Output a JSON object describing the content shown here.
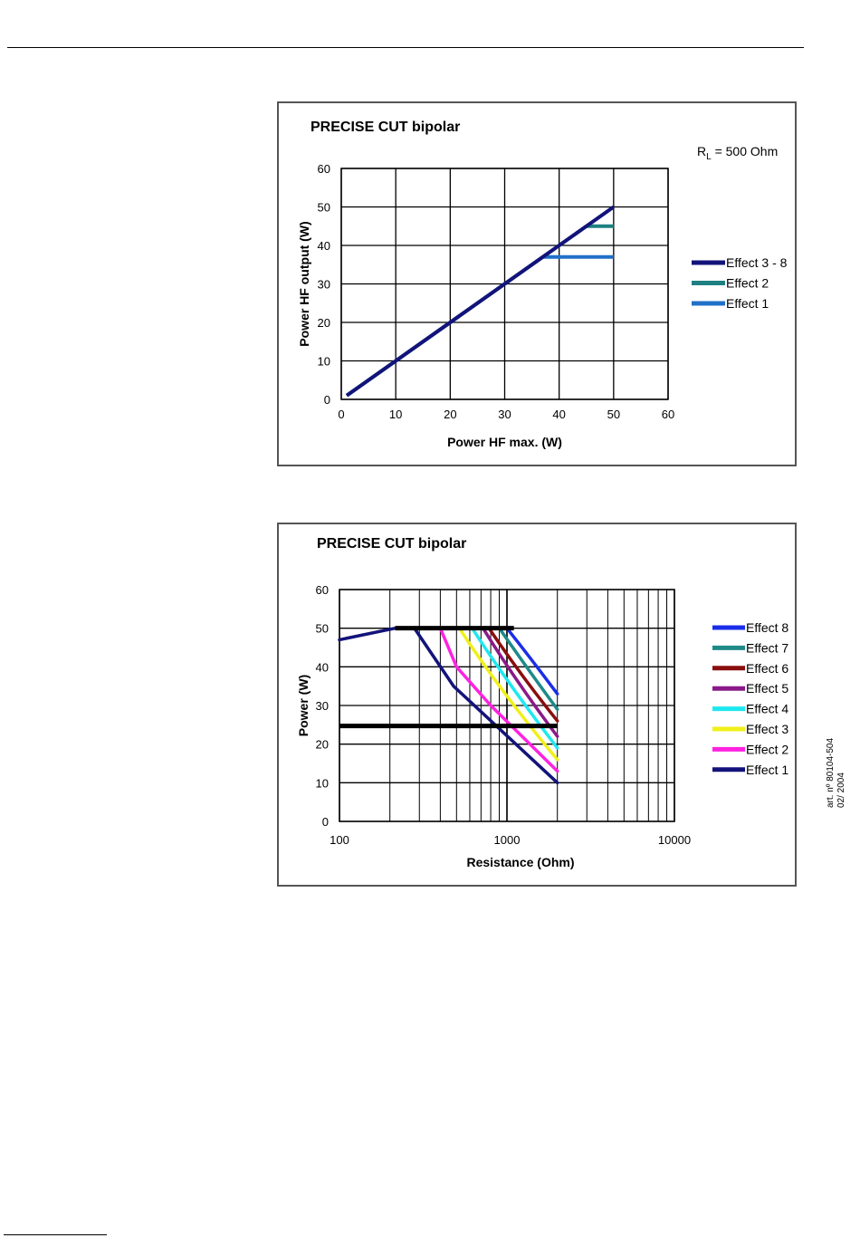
{
  "side_note": {
    "line1": "art. nº 80104-504",
    "line2": "02/ 2004"
  },
  "chart_data": [
    {
      "type": "line",
      "title": "PRECISE CUT bipolar",
      "annotation": {
        "main": "R",
        "sub": "L",
        "rest": " = 500 Ohm"
      },
      "xlabel": "Power HF max. (W)",
      "ylabel": "Power HF output (W)",
      "xlim": [
        0,
        60
      ],
      "ylim": [
        0,
        60
      ],
      "xticks": [
        "0",
        "10",
        "20",
        "30",
        "40",
        "50",
        "60"
      ],
      "yticks": [
        "0",
        "10",
        "20",
        "30",
        "40",
        "50",
        "60"
      ],
      "grid": true,
      "legend_position": "right",
      "series": [
        {
          "name": "Effect 3 - 8",
          "color": "#13137a",
          "x": [
            1,
            50
          ],
          "y": [
            1,
            50
          ]
        },
        {
          "name": "Effect 2",
          "color": "#1e8080",
          "x": [
            1,
            45,
            50
          ],
          "y": [
            1,
            45,
            45
          ]
        },
        {
          "name": "Effect 1",
          "color": "#2070c8",
          "x": [
            1,
            37,
            50
          ],
          "y": [
            1,
            37,
            37
          ]
        }
      ]
    },
    {
      "type": "line",
      "title": "PRECISE CUT bipolar",
      "xlabel": "Resistance (Ohm)",
      "ylabel": "Power (W)",
      "xscale": "log",
      "xlim": [
        100,
        10000
      ],
      "ylim": [
        0,
        60
      ],
      "xticks": [
        "100",
        "1000",
        "10000"
      ],
      "yticks": [
        "0",
        "10",
        "20",
        "30",
        "40",
        "50",
        "60"
      ],
      "grid": true,
      "legend_position": "right",
      "reference_lines": [
        {
          "color": "#000000",
          "x": [
            215,
            1100
          ],
          "y": [
            50,
            50
          ]
        },
        {
          "color": "#000000",
          "x": [
            100,
            2000
          ],
          "y": [
            24.7,
            24.7
          ]
        }
      ],
      "series": [
        {
          "name": "Effect 8",
          "color": "#1a2ee8",
          "x": [
            1000,
            1400,
            2000
          ],
          "y": [
            50,
            42,
            33
          ]
        },
        {
          "name": "Effect 7",
          "color": "#1e8a88",
          "x": [
            900,
            1300,
            2000
          ],
          "y": [
            50,
            40,
            29
          ]
        },
        {
          "name": "Effect 6",
          "color": "#8a0e0e",
          "x": [
            780,
            1200,
            2000
          ],
          "y": [
            50,
            38,
            26
          ]
        },
        {
          "name": "Effect 5",
          "color": "#8a1a8a",
          "x": [
            720,
            1100,
            2000
          ],
          "y": [
            50,
            37,
            22
          ]
        },
        {
          "name": "Effect 4",
          "color": "#1ee8f0",
          "x": [
            620,
            1000,
            2000
          ],
          "y": [
            50,
            36,
            19
          ]
        },
        {
          "name": "Effect 3",
          "color": "#f0f01a",
          "x": [
            520,
            900,
            2000
          ],
          "y": [
            50,
            34,
            16
          ]
        },
        {
          "name": "Effect 2",
          "color": "#ff22e0",
          "x": [
            400,
            500,
            800,
            2000
          ],
          "y": [
            50,
            40,
            30,
            13
          ]
        },
        {
          "name": "Effect 1",
          "color": "#13137a",
          "x": [
            100,
            215,
            280,
            480,
            2000
          ],
          "y": [
            47,
            50,
            50,
            35,
            10
          ]
        }
      ]
    }
  ]
}
